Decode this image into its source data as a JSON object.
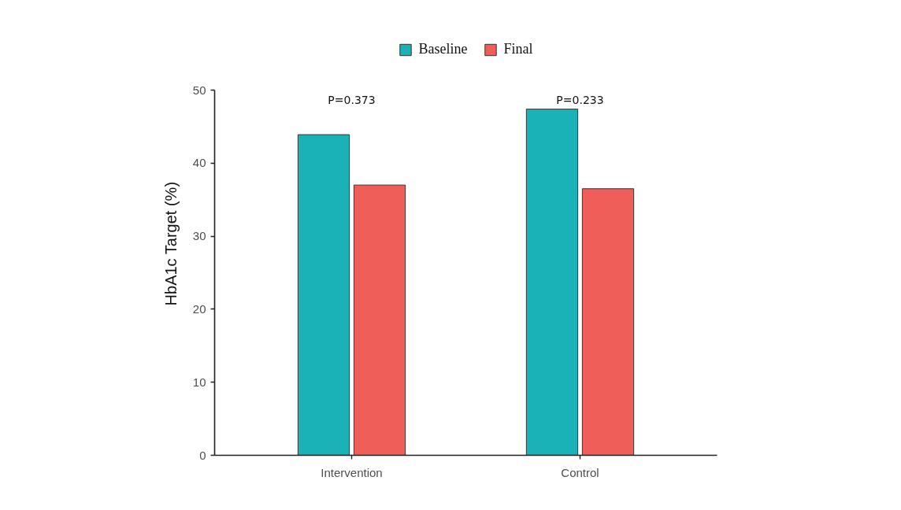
{
  "chart_data": {
    "type": "bar",
    "ylabel": "HbA1c Target (%)",
    "categories": [
      "Intervention",
      "Control"
    ],
    "series": [
      {
        "name": "Baseline",
        "color": "#1ab2b6",
        "values": [
          43.9,
          47.4
        ]
      },
      {
        "name": "Final",
        "color": "#f05e5a",
        "values": [
          37,
          36.5
        ]
      }
    ],
    "ylim": [
      0,
      50
    ],
    "yticks": [
      0,
      10,
      20,
      30,
      40,
      50
    ],
    "grid": false,
    "legend": "top",
    "annotations": [
      "P=0.373",
      "P=0.233"
    ]
  }
}
